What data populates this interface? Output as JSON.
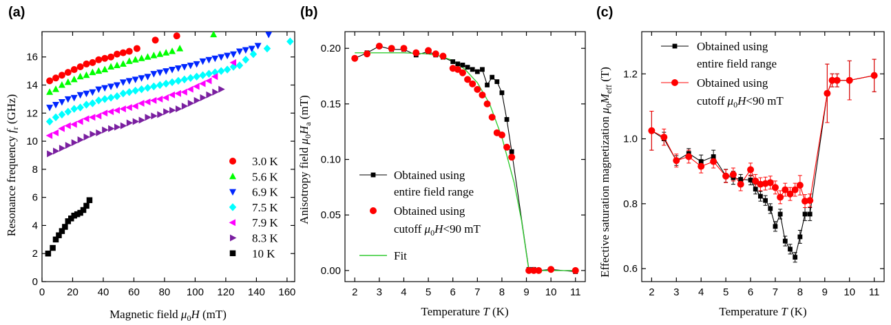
{
  "panels": {
    "a": {
      "label": "(a)",
      "xlabel_pre": "Magnetic field ",
      "xlabel_sym": "μ",
      "xlabel_sub": "0",
      "xlabel_post": "H (mT)",
      "ylabel_pre": "Resonance frequency ",
      "ylabel_sym": "f",
      "ylabel_sub": "r",
      "ylabel_post": " (GHz)"
    },
    "b": {
      "label": "(b)",
      "xlabel": "Temperature T (K)",
      "ylabel_pre": "Anisotropy field ",
      "ylabel_sym": "μ",
      "ylabel_sub": "0",
      "ylabel_mid": "H",
      "ylabel_sub2": "a",
      "ylabel_post": " (mT)"
    },
    "c": {
      "label": "(c)",
      "xlabel": "Temperature T (K)",
      "ylabel_pre": "Effective saturation magnetization ",
      "ylabel_sym": "μ",
      "ylabel_sub": "0",
      "ylabel_mid": "M",
      "ylabel_sub2": "eff",
      "ylabel_post": " (T)"
    }
  },
  "chart_data": [
    {
      "type": "scatter",
      "panel": "a",
      "xlim": [
        0,
        165
      ],
      "ylim": [
        0,
        17.8
      ],
      "xticks": [
        0,
        20,
        40,
        60,
        80,
        100,
        120,
        140,
        160
      ],
      "yticks": [
        0,
        2,
        4,
        6,
        8,
        10,
        12,
        14,
        16
      ],
      "legend_position": "bottom-right",
      "series": [
        {
          "name": "3.0 K",
          "color": "#ff0000",
          "marker": "circle",
          "x": [
            5,
            9,
            13,
            17,
            21,
            25,
            29,
            33,
            37,
            41,
            45,
            49,
            53,
            57,
            62,
            74,
            88
          ],
          "y": [
            14.3,
            14.5,
            14.7,
            14.9,
            15.1,
            15.3,
            15.5,
            15.6,
            15.8,
            15.9,
            16.0,
            16.2,
            16.3,
            16.4,
            16.6,
            17.2,
            17.5
          ]
        },
        {
          "name": "5.6 K",
          "color": "#00ff00",
          "marker": "triangle-up",
          "x": [
            5,
            9,
            13,
            17,
            21,
            25,
            29,
            33,
            37,
            41,
            45,
            49,
            53,
            57,
            61,
            65,
            69,
            73,
            77,
            81,
            85,
            90,
            112
          ],
          "y": [
            13.5,
            13.7,
            14.0,
            14.2,
            14.4,
            14.6,
            14.7,
            14.9,
            15.0,
            15.1,
            15.3,
            15.4,
            15.5,
            15.7,
            15.8,
            15.9,
            16.0,
            16.1,
            16.2,
            16.3,
            16.4,
            16.6,
            17.6
          ]
        },
        {
          "name": "6.9 K",
          "color": "#0026ff",
          "marker": "triangle-down",
          "x": [
            5,
            9,
            13,
            17,
            21,
            25,
            29,
            33,
            37,
            41,
            45,
            49,
            53,
            57,
            61,
            65,
            69,
            73,
            77,
            81,
            85,
            89,
            93,
            97,
            101,
            105,
            109,
            113,
            117,
            121,
            125,
            129,
            133,
            137,
            141,
            148
          ],
          "y": [
            12.4,
            12.6,
            12.8,
            13.0,
            13.1,
            13.3,
            13.4,
            13.5,
            13.7,
            13.8,
            13.9,
            14.0,
            14.2,
            14.3,
            14.4,
            14.5,
            14.6,
            14.8,
            14.9,
            15.0,
            15.1,
            15.2,
            15.3,
            15.4,
            15.5,
            15.7,
            15.8,
            15.9,
            16.0,
            16.1,
            16.2,
            16.4,
            16.5,
            16.6,
            16.8,
            17.6
          ]
        },
        {
          "name": "7.5 K",
          "color": "#00ffff",
          "marker": "diamond",
          "x": [
            5,
            9,
            13,
            17,
            21,
            25,
            29,
            33,
            37,
            41,
            45,
            49,
            53,
            57,
            61,
            65,
            69,
            73,
            77,
            81,
            85,
            89,
            93,
            97,
            101,
            105,
            109,
            113,
            117,
            121,
            125,
            129,
            133,
            138,
            147,
            162
          ],
          "y": [
            11.4,
            11.7,
            11.9,
            12.1,
            12.3,
            12.4,
            12.6,
            12.7,
            12.9,
            13.0,
            13.1,
            13.2,
            13.4,
            13.5,
            13.6,
            13.7,
            13.8,
            13.9,
            14.0,
            14.1,
            14.2,
            14.3,
            14.4,
            14.5,
            14.6,
            14.7,
            14.8,
            14.9,
            15.0,
            15.1,
            15.3,
            15.4,
            15.8,
            16.2,
            16.6,
            17.1
          ]
        },
        {
          "name": "7.9 K",
          "color": "#ff00ff",
          "marker": "triangle-left",
          "x": [
            5,
            9,
            13,
            17,
            21,
            25,
            29,
            33,
            37,
            41,
            45,
            49,
            53,
            57,
            61,
            65,
            69,
            73,
            77,
            81,
            85,
            89,
            93,
            97,
            101,
            105,
            109,
            113,
            125
          ],
          "y": [
            10.4,
            10.6,
            10.9,
            11.1,
            11.2,
            11.4,
            11.6,
            11.7,
            11.8,
            12.0,
            12.1,
            12.2,
            12.3,
            12.4,
            12.5,
            12.7,
            12.8,
            12.9,
            13.0,
            13.1,
            13.3,
            13.4,
            13.5,
            13.7,
            13.9,
            14.1,
            14.3,
            14.6,
            15.6
          ]
        },
        {
          "name": "8.3 K",
          "color": "#7a1fa0",
          "marker": "triangle-right",
          "x": [
            5,
            9,
            13,
            17,
            21,
            25,
            29,
            33,
            37,
            41,
            45,
            49,
            53,
            57,
            61,
            65,
            69,
            73,
            77,
            81,
            85,
            89,
            93,
            97,
            101,
            105,
            109,
            113,
            117
          ],
          "y": [
            9.1,
            9.3,
            9.5,
            9.7,
            9.9,
            10.1,
            10.3,
            10.5,
            10.6,
            10.8,
            10.9,
            11.0,
            11.1,
            11.3,
            11.4,
            11.5,
            11.7,
            11.8,
            11.9,
            12.1,
            12.2,
            12.3,
            12.5,
            12.7,
            12.9,
            13.1,
            13.3,
            13.5,
            13.7
          ]
        },
        {
          "name": "10 K",
          "color": "#000000",
          "marker": "square",
          "x": [
            4,
            7,
            9,
            11,
            13,
            15,
            17,
            19,
            21,
            23,
            25,
            27,
            29,
            31
          ],
          "y": [
            2.0,
            2.4,
            3.0,
            3.3,
            3.6,
            3.9,
            4.3,
            4.5,
            4.7,
            4.8,
            4.9,
            5.1,
            5.4,
            5.8
          ]
        }
      ]
    },
    {
      "type": "line",
      "panel": "b",
      "xlim": [
        1.6,
        11.4
      ],
      "ylim": [
        -0.01,
        0.215
      ],
      "xticks": [
        2,
        3,
        4,
        5,
        6,
        7,
        8,
        9,
        10,
        11
      ],
      "yticks": [
        0.0,
        0.05,
        0.1,
        0.15,
        0.2
      ],
      "ytick_labels": [
        "0.00",
        "0.05",
        "0.10",
        "0.15",
        "0.20"
      ],
      "legend_position": "bottom-left",
      "series": [
        {
          "name": "Obtained using entire field range",
          "color": "#000000",
          "marker": "square",
          "line": true,
          "x": [
            2,
            2.5,
            3,
            3.5,
            4,
            4.5,
            5,
            5.3,
            5.6,
            6,
            6.2,
            6.4,
            6.6,
            6.8,
            7,
            7.2,
            7.4,
            7.6,
            7.8,
            8,
            8.2,
            8.4,
            9.1,
            9.3,
            9.5,
            10,
            11
          ],
          "y": [
            0.191,
            0.196,
            0.202,
            0.199,
            0.199,
            0.194,
            0.197,
            0.194,
            0.192,
            0.188,
            0.186,
            0.185,
            0.183,
            0.181,
            0.179,
            0.181,
            0.167,
            0.174,
            0.17,
            0.16,
            0.136,
            0.107,
            0.001,
            0.001,
            0.0,
            0.001,
            -0.001
          ]
        },
        {
          "name": "Obtained using cutoff μ0H<90 mT",
          "color": "#ff0000",
          "marker": "circle",
          "line": false,
          "x": [
            2,
            2.5,
            3,
            3.5,
            4,
            4.5,
            5,
            5.3,
            5.6,
            6,
            6.2,
            6.4,
            6.6,
            6.8,
            7,
            7.2,
            7.4,
            7.6,
            7.8,
            8,
            8.2,
            8.4,
            9.1,
            9.3,
            9.5,
            10,
            11
          ],
          "y": [
            0.191,
            0.195,
            0.202,
            0.2,
            0.2,
            0.196,
            0.198,
            0.195,
            0.193,
            0.182,
            0.181,
            0.178,
            0.172,
            0.168,
            0.163,
            0.158,
            0.15,
            0.138,
            0.124,
            0.122,
            0.111,
            0.102,
            0.0,
            0.0,
            0.0,
            0.001,
            0.0
          ]
        },
        {
          "name": "Fit",
          "color": "#33cc33",
          "marker": "none",
          "line": true,
          "x": [
            2,
            3,
            4,
            5,
            5.5,
            6,
            6.5,
            7,
            7.5,
            8,
            8.5,
            8.8,
            9.0,
            9.1,
            9.5,
            10,
            11
          ],
          "y": [
            0.196,
            0.196,
            0.196,
            0.195,
            0.193,
            0.189,
            0.181,
            0.169,
            0.15,
            0.12,
            0.079,
            0.045,
            0.015,
            0.0,
            0.0,
            0.0,
            0.0
          ]
        }
      ]
    },
    {
      "type": "line",
      "panel": "c",
      "xlim": [
        1.6,
        11.4
      ],
      "ylim": [
        0.56,
        1.33
      ],
      "xticks": [
        2,
        3,
        4,
        5,
        6,
        7,
        8,
        9,
        10,
        11
      ],
      "yticks": [
        0.6,
        0.8,
        1.0,
        1.2
      ],
      "ytick_labels": [
        "0.6",
        "0.8",
        "1.0",
        "1.2"
      ],
      "legend_position": "top-left",
      "series": [
        {
          "name": "Obtained using entire field range",
          "color": "#000000",
          "marker": "square",
          "line": true,
          "x": [
            2,
            2.5,
            3,
            3.5,
            4,
            4.5,
            5,
            5.3,
            5.6,
            6,
            6.2,
            6.4,
            6.6,
            6.8,
            7,
            7.2,
            7.4,
            7.6,
            7.8,
            8,
            8.2,
            8.4,
            9.1,
            9.3,
            9.5,
            10,
            11
          ],
          "y": [
            1.025,
            1.0,
            0.933,
            0.955,
            0.93,
            0.945,
            0.886,
            0.88,
            0.875,
            0.873,
            0.845,
            0.823,
            0.81,
            0.785,
            0.73,
            0.768,
            0.685,
            0.66,
            0.635,
            0.698,
            0.768,
            0.768,
            1.14,
            1.18,
            1.18,
            1.18,
            1.195
          ],
          "err": [
            0.06,
            0.02,
            0.015,
            0.015,
            0.02,
            0.02,
            0.02,
            0.02,
            0.015,
            0.015,
            0.015,
            0.015,
            0.015,
            0.015,
            0.015,
            0.015,
            0.015,
            0.015,
            0.015,
            0.02,
            0.02,
            0.02,
            0.09,
            0.02,
            0.02,
            0.06,
            0.05
          ]
        },
        {
          "name": "Obtained using cutoff μ0H<90 mT",
          "color": "#ff0000",
          "marker": "circle",
          "line": true,
          "x": [
            2,
            2.5,
            3,
            3.5,
            4,
            4.5,
            5,
            5.3,
            5.6,
            6,
            6.2,
            6.4,
            6.6,
            6.8,
            7,
            7.2,
            7.4,
            7.6,
            7.8,
            8,
            8.2,
            8.4,
            9.1,
            9.3,
            9.5,
            10,
            11
          ],
          "y": [
            1.025,
            1.005,
            0.933,
            0.945,
            0.915,
            0.93,
            0.885,
            0.89,
            0.86,
            0.905,
            0.87,
            0.86,
            0.862,
            0.865,
            0.85,
            0.82,
            0.843,
            0.83,
            0.843,
            0.857,
            0.808,
            0.81,
            1.14,
            1.18,
            1.18,
            1.18,
            1.195
          ],
          "err": [
            0.06,
            0.025,
            0.02,
            0.02,
            0.02,
            0.02,
            0.02,
            0.02,
            0.02,
            0.02,
            0.02,
            0.02,
            0.02,
            0.02,
            0.02,
            0.02,
            0.02,
            0.02,
            0.02,
            0.03,
            0.02,
            0.02,
            0.09,
            0.02,
            0.02,
            0.06,
            0.05
          ]
        }
      ]
    }
  ]
}
